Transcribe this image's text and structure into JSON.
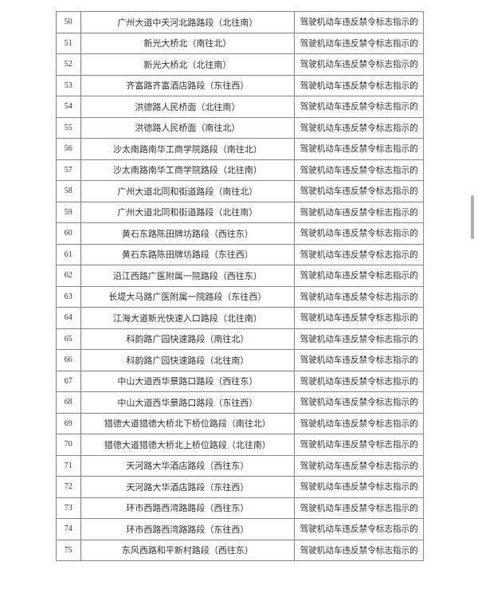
{
  "rows": [
    {
      "num": "50",
      "location": "广州大道中天河北路路段（北往南）",
      "violation": "驾驶机动车违反禁令标志指示的"
    },
    {
      "num": "51",
      "location": "新光大桥北（南往北）",
      "violation": "驾驶机动车违反禁令标志指示的"
    },
    {
      "num": "52",
      "location": "新光大桥北（北往南）",
      "violation": "驾驶机动车违反禁令标志指示的"
    },
    {
      "num": "53",
      "location": "齐富路齐富酒店路段（东往西）",
      "violation": "驾驶机动车违反禁令标志指示的"
    },
    {
      "num": "54",
      "location": "洪德路人民桥面（北往南）",
      "violation": "驾驶机动车违反禁令标志指示的"
    },
    {
      "num": "55",
      "location": "洪德路人民桥面（南往北）",
      "violation": "驾驶机动车违反禁令标志指示的"
    },
    {
      "num": "56",
      "location": "沙太南路南华工商学院路段（南往北）",
      "violation": "驾驶机动车违反禁令标志指示的"
    },
    {
      "num": "57",
      "location": "沙太南路南华工商学院路段（北往南）",
      "violation": "驾驶机动车违反禁令标志指示的"
    },
    {
      "num": "58",
      "location": "广州大道北同和街道路段（南往北）",
      "violation": "驾驶机动车违反禁令标志指示的"
    },
    {
      "num": "59",
      "location": "广州大道北同和街道路段（北往南）",
      "violation": "驾驶机动车违反禁令标志指示的"
    },
    {
      "num": "60",
      "location": "黄石东路陈田牌坊路段（西往东）",
      "violation": "驾驶机动车违反禁令标志指示的"
    },
    {
      "num": "61",
      "location": "黄石东路陈田牌坊路段（东往西）",
      "violation": "驾驶机动车违反禁令标志指示的"
    },
    {
      "num": "62",
      "location": "沿江西路广医附属一院路段（西往东）",
      "violation": "驾驶机动车违反禁令标志指示的"
    },
    {
      "num": "63",
      "location": "长堤大马路广医附属一院路段（东往西）",
      "violation": "驾驶机动车违反禁令标志指示的"
    },
    {
      "num": "64",
      "location": "江海大道新光快速入口路段（北往南）",
      "violation": "驾驶机动车违反禁令标志指示的"
    },
    {
      "num": "65",
      "location": "科韵路广园快速路段（南往北）",
      "violation": "驾驶机动车违反禁令标志指示的"
    },
    {
      "num": "66",
      "location": "科韵路广园快速路段（北往南）",
      "violation": "驾驶机动车违反禁令标志指示的"
    },
    {
      "num": "67",
      "location": "中山大道西华景路口路段（西往东）",
      "violation": "驾驶机动车违反禁令标志指示的"
    },
    {
      "num": "68",
      "location": "中山大道西华景路口路段（东往西）",
      "violation": "驾驶机动车违反禁令标志指示的"
    },
    {
      "num": "69",
      "location": "猎德大道猎德大桥北下桥位路段（南往北）",
      "violation": "驾驶机动车违反禁令标志指示的"
    },
    {
      "num": "70",
      "location": "猎德大道猎德大桥北上桥位路段（北往南）",
      "violation": "驾驶机动车违反禁令标志指示的"
    },
    {
      "num": "71",
      "location": "天河路大华酒店路段（西往东）",
      "violation": "驾驶机动车违反禁令标志指示的"
    },
    {
      "num": "72",
      "location": "天河路大华酒店路段（东往西）",
      "violation": "驾驶机动车违反禁令标志指示的"
    },
    {
      "num": "73",
      "location": "环市西路西湾路路段（西往东）",
      "violation": "驾驶机动车违反禁令标志指示的"
    },
    {
      "num": "74",
      "location": "环市西路西湾路路段（东往西）",
      "violation": "驾驶机动车违反禁令标志指示的"
    },
    {
      "num": "75",
      "location": "东风西路和平新村路段（西往东）",
      "violation": "驾驶机动车违反禁令标志指示的"
    }
  ]
}
